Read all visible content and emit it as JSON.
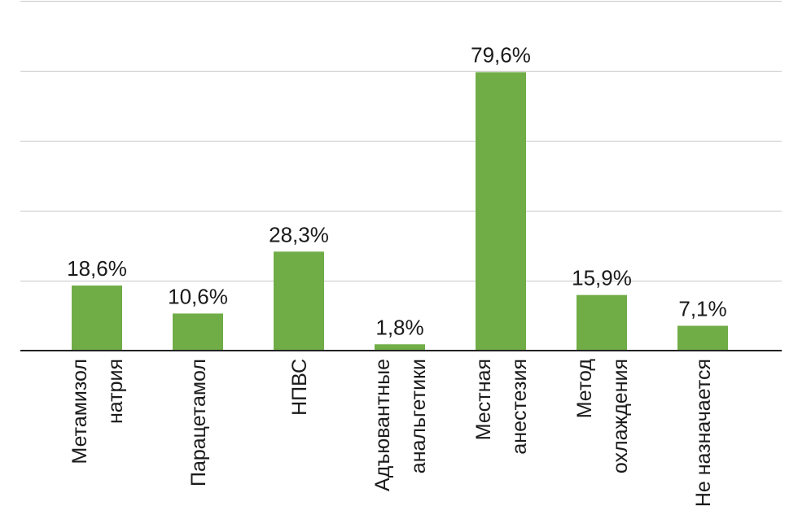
{
  "chart_data": {
    "type": "bar",
    "categories": [
      [
        "Метамизол",
        "натрия"
      ],
      [
        "Парацетамол"
      ],
      [
        "НПВС"
      ],
      [
        "Адъювантные",
        "анальгетики"
      ],
      [
        "Местная",
        "анестезия"
      ],
      [
        "Метод",
        "охлаждения"
      ],
      [
        "Не назначается"
      ]
    ],
    "values": [
      18.6,
      10.6,
      28.3,
      1.8,
      79.6,
      15.9,
      7.1
    ],
    "value_labels": [
      "18,6%",
      "10,6%",
      "28,3%",
      "1,8%",
      "79,6%",
      "15,9%",
      "7,1%"
    ],
    "ylim": [
      0,
      100
    ],
    "gridlines": [
      20,
      40,
      60,
      80,
      100
    ],
    "grid": true,
    "bar_color": "#70ad47"
  }
}
